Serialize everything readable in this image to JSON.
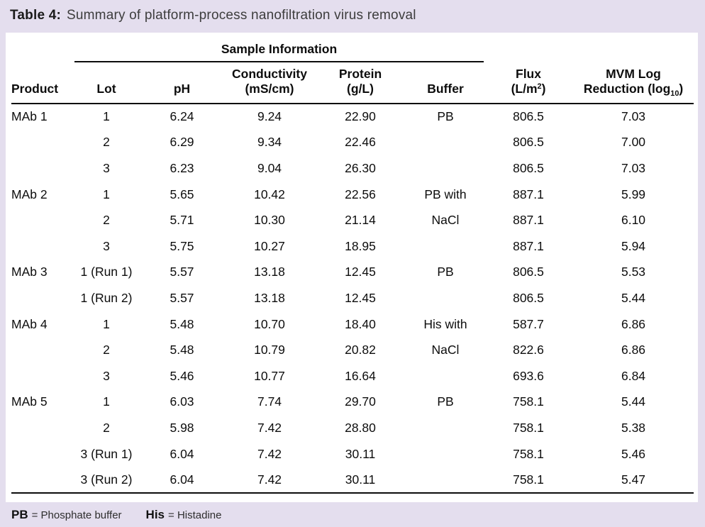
{
  "page": {
    "background_color": "#e4deee",
    "card_color": "#ffffff",
    "rule_color": "#0d0d0d"
  },
  "title": {
    "label": "Table 4:",
    "text": "Summary of platform-process nanofiltration virus removal"
  },
  "table": {
    "span_header": "Sample Information",
    "columns": [
      {
        "id": "product",
        "line1": "",
        "line2": [
          {
            "t": "Product"
          }
        ]
      },
      {
        "id": "lot",
        "line1": "",
        "line2": [
          {
            "t": "Lot"
          }
        ]
      },
      {
        "id": "ph",
        "line1": "",
        "line2": [
          {
            "t": "pH"
          }
        ]
      },
      {
        "id": "cond",
        "line1": "Conductivity",
        "line2": [
          {
            "t": "(mS/cm)"
          }
        ]
      },
      {
        "id": "protein",
        "line1": "Protein",
        "line2": [
          {
            "t": "(g/L)"
          }
        ]
      },
      {
        "id": "buffer",
        "line1": "",
        "line2": [
          {
            "t": "Buffer"
          }
        ]
      },
      {
        "id": "flux",
        "line1": "Flux",
        "line2": [
          {
            "t": "(L/m"
          },
          {
            "t": "2",
            "sup": true
          },
          {
            "t": ")"
          }
        ]
      },
      {
        "id": "mvm",
        "line1": "MVM Log",
        "line2": [
          {
            "t": "Reduction (log"
          },
          {
            "t": "10",
            "sub": true
          },
          {
            "t": ")"
          }
        ]
      }
    ],
    "rows": [
      {
        "product": "MAb 1",
        "lot": "1",
        "ph": "6.24",
        "cond": "9.24",
        "protein": "22.90",
        "buffer": "PB",
        "flux": "806.5",
        "mvm": "7.03"
      },
      {
        "product": "",
        "lot": "2",
        "ph": "6.29",
        "cond": "9.34",
        "protein": "22.46",
        "buffer": "",
        "flux": "806.5",
        "mvm": "7.00"
      },
      {
        "product": "",
        "lot": "3",
        "ph": "6.23",
        "cond": "9.04",
        "protein": "26.30",
        "buffer": "",
        "flux": "806.5",
        "mvm": "7.03"
      },
      {
        "product": "MAb 2",
        "lot": "1",
        "ph": "5.65",
        "cond": "10.42",
        "protein": "22.56",
        "buffer": "PB with",
        "flux": "887.1",
        "mvm": "5.99"
      },
      {
        "product": "",
        "lot": "2",
        "ph": "5.71",
        "cond": "10.30",
        "protein": "21.14",
        "buffer": "NaCl",
        "flux": "887.1",
        "mvm": "6.10"
      },
      {
        "product": "",
        "lot": "3",
        "ph": "5.75",
        "cond": "10.27",
        "protein": "18.95",
        "buffer": "",
        "flux": "887.1",
        "mvm": "5.94"
      },
      {
        "product": "MAb 3",
        "lot": "1 (Run 1)",
        "ph": "5.57",
        "cond": "13.18",
        "protein": "12.45",
        "buffer": "PB",
        "flux": "806.5",
        "mvm": "5.53"
      },
      {
        "product": "",
        "lot": "1 (Run 2)",
        "ph": "5.57",
        "cond": "13.18",
        "protein": "12.45",
        "buffer": "",
        "flux": "806.5",
        "mvm": "5.44"
      },
      {
        "product": "MAb 4",
        "lot": "1",
        "ph": "5.48",
        "cond": "10.70",
        "protein": "18.40",
        "buffer": "His with",
        "flux": "587.7",
        "mvm": "6.86"
      },
      {
        "product": "",
        "lot": "2",
        "ph": "5.48",
        "cond": "10.79",
        "protein": "20.82",
        "buffer": "NaCl",
        "flux": "822.6",
        "mvm": "6.86"
      },
      {
        "product": "",
        "lot": "3",
        "ph": "5.46",
        "cond": "10.77",
        "protein": "16.64",
        "buffer": "",
        "flux": "693.6",
        "mvm": "6.84"
      },
      {
        "product": "MAb 5",
        "lot": "1",
        "ph": "6.03",
        "cond": "7.74",
        "protein": "29.70",
        "buffer": "PB",
        "flux": "758.1",
        "mvm": "5.44"
      },
      {
        "product": "",
        "lot": "2",
        "ph": "5.98",
        "cond": "7.42",
        "protein": "28.80",
        "buffer": "",
        "flux": "758.1",
        "mvm": "5.38"
      },
      {
        "product": "",
        "lot": "3 (Run 1)",
        "ph": "6.04",
        "cond": "7.42",
        "protein": "30.11",
        "buffer": "",
        "flux": "758.1",
        "mvm": "5.46"
      },
      {
        "product": "",
        "lot": "3 (Run 2)",
        "ph": "6.04",
        "cond": "7.42",
        "protein": "30.11",
        "buffer": "",
        "flux": "758.1",
        "mvm": "5.47"
      }
    ]
  },
  "legend": {
    "items": [
      {
        "term": "PB",
        "definition": "= Phosphate buffer"
      },
      {
        "term": "His",
        "definition": "= Histadine"
      }
    ]
  }
}
